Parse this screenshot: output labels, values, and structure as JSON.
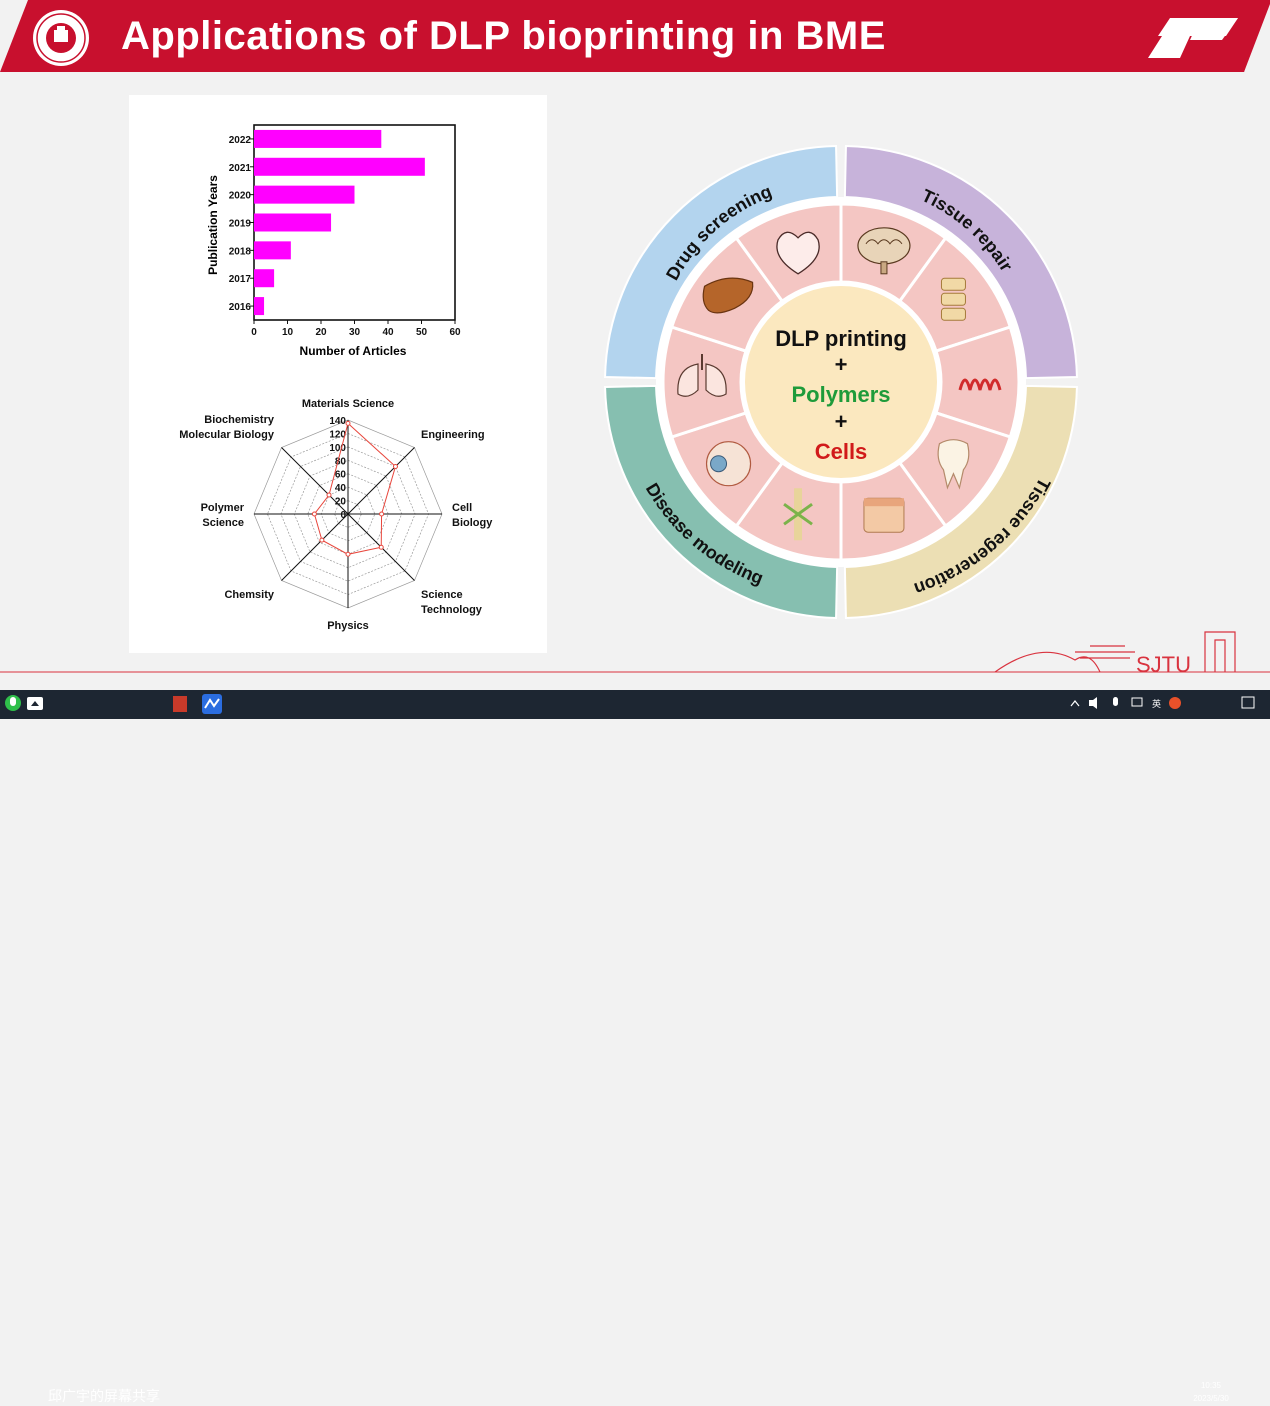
{
  "slide": {
    "title": "Applications of DLP bioprinting in BME",
    "footer_logo_text": "SJTU",
    "colors": {
      "header_red": "#c8102e",
      "bar_magenta": "#ff00ff",
      "radar_red": "#e8463c"
    }
  },
  "bar_chart": {
    "xlabel": "Number of Articles",
    "ylabel": "Publication Years",
    "x_ticks": [
      "0",
      "10",
      "20",
      "30",
      "40",
      "50",
      "60"
    ]
  },
  "radar_chart": {
    "ring_ticks": [
      "0",
      "20",
      "40",
      "60",
      "80",
      "100",
      "120",
      "140"
    ],
    "axes": [
      {
        "line1": "Materials Science",
        "line2": ""
      },
      {
        "line1": "Engineering",
        "line2": ""
      },
      {
        "line1": "Cell",
        "line2": "Biology"
      },
      {
        "line1": "Science",
        "line2": "Technology"
      },
      {
        "line1": "Physics",
        "line2": ""
      },
      {
        "line1": "Chemsity",
        "line2": ""
      },
      {
        "line1": "Polymer",
        "line2": "Science"
      },
      {
        "line1": "Biochemistry",
        "line2": "Molecular Biology"
      }
    ]
  },
  "chart_data": [
    {
      "type": "bar",
      "orientation": "horizontal",
      "categories": [
        "2022",
        "2021",
        "2020",
        "2019",
        "2018",
        "2017",
        "2016"
      ],
      "values": [
        38,
        51,
        30,
        23,
        11,
        6,
        3
      ],
      "xlabel": "Number of Articles",
      "ylabel": "Publication Years",
      "xlim": [
        0,
        60
      ],
      "color": "#ff00ff"
    },
    {
      "type": "radar",
      "categories": [
        "Materials Science",
        "Engineering",
        "Cell Biology",
        "Science Technology",
        "Physics",
        "Chemsity",
        "Polymer Science",
        "Biochemistry Molecular Biology"
      ],
      "values": [
        135,
        100,
        50,
        70,
        60,
        55,
        50,
        40
      ],
      "rlim": [
        0,
        140
      ],
      "color": "#e8463c"
    }
  ],
  "wheel": {
    "center_lines": [
      {
        "text": "DLP printing",
        "color": "#111111"
      },
      {
        "text": "+",
        "color": "#111111"
      },
      {
        "text": "Polymers",
        "color": "#1e9b3a"
      },
      {
        "text": "+",
        "color": "#111111"
      },
      {
        "text": "Cells",
        "color": "#d11a1a"
      }
    ],
    "quadrants": [
      {
        "label": "Drug screening",
        "color": "#b3d4ee"
      },
      {
        "label": "Tissue repair",
        "color": "#c7b3da"
      },
      {
        "label": "Tissue regeneration",
        "color": "#ecdfb4"
      },
      {
        "label": "Disease modeling",
        "color": "#86bfb0"
      }
    ],
    "segment_icons": [
      "brain",
      "spine",
      "vessel",
      "tooth",
      "skin",
      "bone",
      "eye",
      "lungs",
      "liver",
      "heart"
    ]
  },
  "taskbar": {
    "share_label": "邱广宇的屏幕共享",
    "ime_label": "英",
    "time": "10:35",
    "date": "2023/5/30"
  }
}
